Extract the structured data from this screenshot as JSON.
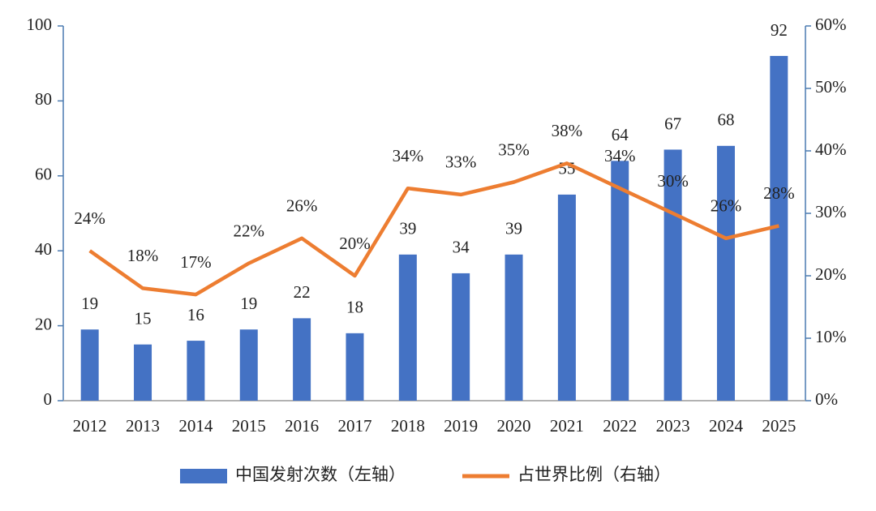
{
  "chart_data": {
    "type": "bar",
    "categories": [
      "2012",
      "2013",
      "2014",
      "2015",
      "2016",
      "2017",
      "2018",
      "2019",
      "2020",
      "2021",
      "2022",
      "2023",
      "2024",
      "2025"
    ],
    "series": [
      {
        "name": "中国发射次数（左轴）",
        "type": "bar",
        "color": "#4472c4",
        "values": [
          19,
          15,
          16,
          19,
          22,
          18,
          39,
          34,
          39,
          55,
          64,
          67,
          68,
          92
        ]
      },
      {
        "name": "占世界比例（右轴）",
        "type": "line",
        "axis": "y2",
        "color": "#ed7d31",
        "values": [
          24,
          18,
          17,
          22,
          26,
          20,
          34,
          33,
          35,
          38,
          34,
          30,
          26,
          28
        ],
        "value_labels": [
          "24%",
          "18%",
          "17%",
          "22%",
          "26%",
          "20%",
          "34%",
          "33%",
          "35%",
          "38%",
          "34%",
          "30%",
          "26%",
          "28%"
        ]
      }
    ],
    "ylim": [
      0,
      100
    ],
    "yticks": [
      0,
      20,
      40,
      60,
      80,
      100
    ],
    "y2lim": [
      0,
      60
    ],
    "y2ticks": [
      {
        "value": 0,
        "label": "0%"
      },
      {
        "value": 10,
        "label": "10%"
      },
      {
        "value": 20,
        "label": "20%"
      },
      {
        "value": 30,
        "label": "30%"
      },
      {
        "value": 40,
        "label": "40%"
      },
      {
        "value": 50,
        "label": "50%"
      },
      {
        "value": 60,
        "label": "60%"
      }
    ],
    "legend": "bottom"
  }
}
